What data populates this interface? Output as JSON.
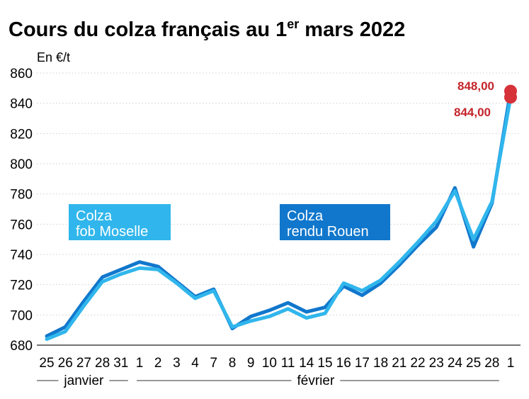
{
  "chart_data": {
    "type": "line",
    "title": "Cours du colza français au 1",
    "title_sup": "er",
    "title_end": " mars 2022",
    "ylabel": "En €/t",
    "ylim": [
      680,
      860
    ],
    "yticks": [
      680,
      700,
      720,
      740,
      760,
      780,
      800,
      820,
      840,
      860
    ],
    "grid": true,
    "categories": [
      "25",
      "26",
      "27",
      "28",
      "31",
      "1",
      "2",
      "3",
      "4",
      "7",
      "8",
      "9",
      "10",
      "11",
      "14",
      "15",
      "16",
      "17",
      "18",
      "21",
      "22",
      "23",
      "24",
      "25",
      "28",
      "1"
    ],
    "months": [
      {
        "label": "janvier",
        "from": 0,
        "to": 4
      },
      {
        "label": "février",
        "from": 5,
        "to": 24
      }
    ],
    "series": [
      {
        "name": "Colza rendu Rouen",
        "name_line1": "Colza",
        "name_line2": "rendu Rouen",
        "color": "#1177cc",
        "values": [
          686,
          692,
          709,
          725,
          730,
          735,
          732,
          722,
          712,
          717,
          691,
          699,
          703,
          708,
          702,
          705,
          719,
          713,
          721,
          733,
          746,
          758,
          784,
          745,
          774,
          848
        ],
        "last_label": "848,00"
      },
      {
        "name": "Colza fob Moselle",
        "name_line1": "Colza",
        "name_line2": "fob Moselle",
        "color": "#30b6ec",
        "values": [
          684,
          689,
          706,
          722,
          727,
          731,
          730,
          721,
          711,
          716,
          692,
          696,
          699,
          704,
          698,
          701,
          721,
          716,
          723,
          735,
          748,
          762,
          782,
          750,
          775,
          844
        ],
        "last_label": "844,00"
      }
    ],
    "marker_color": "#d6323a"
  }
}
